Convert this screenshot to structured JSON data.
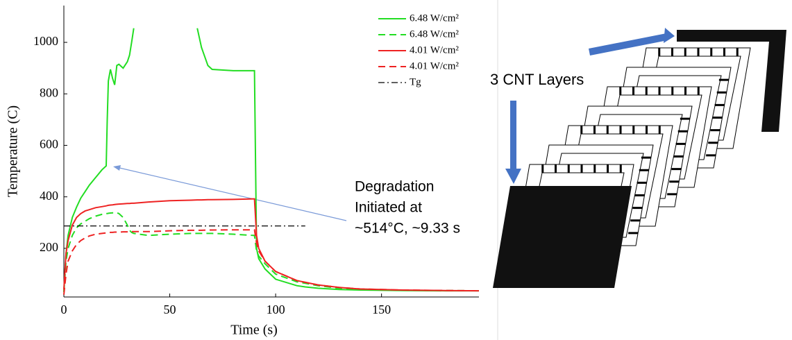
{
  "chart_data": {
    "type": "line",
    "x_label": "Time (s)",
    "y_label": "Temperature (C)",
    "xlim": [
      0,
      196
    ],
    "ylim": [
      11,
      1143
    ],
    "xticks": [
      0,
      50,
      100,
      150
    ],
    "yticks": [
      200,
      400,
      600,
      800,
      1000
    ],
    "x": [
      0,
      1,
      2,
      4,
      6,
      8,
      10,
      12,
      15,
      18,
      20,
      20.5,
      21,
      22,
      23,
      24,
      25,
      26,
      28,
      30,
      31,
      32,
      33,
      40,
      50,
      60,
      63,
      65,
      68,
      70,
      80,
      89.5,
      90,
      91,
      92,
      95,
      100,
      110,
      114,
      120,
      130,
      140,
      160,
      180,
      196
    ],
    "series": [
      {
        "name": "6.48 W/cm²",
        "color": "#22dd22",
        "dash": "solid",
        "values": [
          30,
          180,
          250,
          320,
          360,
          395,
          420,
          445,
          475,
          505,
          520,
          700,
          850,
          895,
          860,
          835,
          910,
          915,
          900,
          925,
          950,
          1000,
          1055,
          null,
          null,
          null,
          1055,
          980,
          910,
          895,
          890,
          890,
          890,
          200,
          160,
          120,
          80,
          55,
          50,
          45,
          40,
          38,
          36,
          35,
          35
        ]
      },
      {
        "name": "6.48 W/cm²",
        "color": "#22dd22",
        "dash": "dashed",
        "values": [
          30,
          150,
          200,
          250,
          280,
          295,
          305,
          315,
          325,
          332,
          335,
          335,
          336,
          337,
          338,
          338,
          338,
          335,
          320,
          290,
          270,
          262,
          258,
          250,
          255,
          258,
          258,
          258,
          258,
          258,
          255,
          250,
          250,
          190,
          170,
          140,
          100,
          70,
          64,
          55,
          45,
          40,
          37,
          36,
          35
        ]
      },
      {
        "name": "4.01 W/cm²",
        "color": "#ee2222",
        "dash": "solid",
        "values": [
          40,
          180,
          230,
          290,
          320,
          335,
          345,
          350,
          358,
          362,
          365,
          366,
          367,
          368,
          369,
          370,
          371,
          372,
          373,
          374,
          374,
          375,
          375,
          380,
          385,
          387,
          388,
          388,
          389,
          389,
          390,
          392,
          392,
          250,
          200,
          150,
          110,
          75,
          68,
          58,
          48,
          42,
          38,
          36,
          35
        ]
      },
      {
        "name": "4.01 W/cm²",
        "color": "#ee2222",
        "dash": "dashed",
        "values": [
          20,
          100,
          150,
          190,
          215,
          230,
          240,
          248,
          255,
          258,
          260,
          261,
          261,
          262,
          262,
          263,
          263,
          263,
          264,
          264,
          264,
          265,
          265,
          265,
          268,
          270,
          270,
          270,
          271,
          271,
          272,
          272,
          272,
          220,
          190,
          150,
          110,
          75,
          68,
          58,
          48,
          42,
          38,
          36,
          35
        ]
      },
      {
        "name": "Tg",
        "color": "#000000",
        "dash": "dashdot",
        "values": [
          287,
          287,
          287,
          287,
          287,
          287,
          287,
          287,
          287,
          287,
          287,
          287,
          287,
          287,
          287,
          287,
          287,
          287,
          287,
          287,
          287,
          287,
          287,
          287,
          287,
          287,
          287,
          287,
          287,
          287,
          287,
          287,
          287,
          287,
          287,
          287,
          287,
          287,
          287,
          null,
          null,
          null,
          null,
          null,
          null
        ]
      }
    ],
    "annotation": [
      "Degradation",
      "Initiated at",
      "~514°C, ~9.33 s"
    ]
  },
  "diagram": {
    "label": "3 CNT Layers"
  }
}
